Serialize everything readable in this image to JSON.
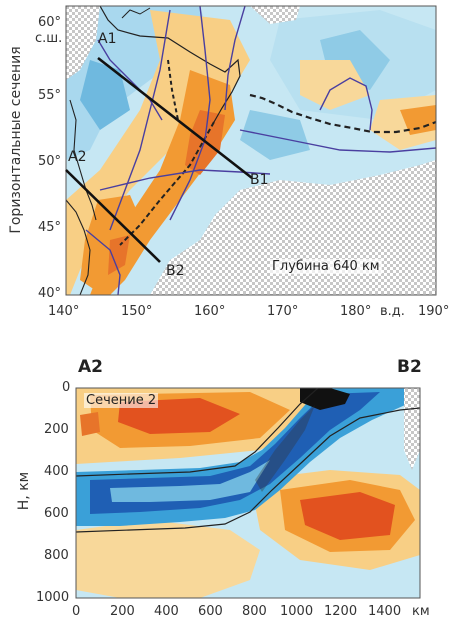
{
  "map": {
    "ylabel": "Горизонтальные сечения",
    "lat_ticks": [
      "60°",
      "55°",
      "50°",
      "45°",
      "40°"
    ],
    "lat_unit": "с.ш.",
    "lon_ticks": [
      "140°",
      "150°",
      "160°",
      "170°",
      "180°",
      "190°"
    ],
    "lon_unit": "в.д.",
    "depth_label": "Глубина 640 км",
    "profiles": [
      {
        "start": "A1",
        "end": "B1"
      },
      {
        "start": "A2",
        "end": "B2"
      }
    ],
    "extent": {
      "lon": [
        140,
        190
      ],
      "lat": [
        40,
        62
      ]
    }
  },
  "section": {
    "left_label": "A2",
    "right_label": "B2",
    "title": "Сечение 2",
    "ylabel": "H, км",
    "x_ticks": [
      "0",
      "200",
      "400",
      "600",
      "800",
      "1000",
      "1200",
      "1400"
    ],
    "x_unit": "км",
    "y_ticks": [
      "0",
      "200",
      "400",
      "600",
      "800",
      "1000"
    ],
    "x_range": [
      0,
      1550
    ],
    "y_range": [
      0,
      1000
    ]
  },
  "colors": {
    "fast_strong": "#1f5fb4",
    "fast_mid": "#3aa0d8",
    "fast_light": "#a9d8ee",
    "slow_light": "#f8cf85",
    "slow_mid": "#f29a33",
    "slow_strong": "#e2521f",
    "plate_lines": "#4a3fa0",
    "coast": "#222222"
  }
}
